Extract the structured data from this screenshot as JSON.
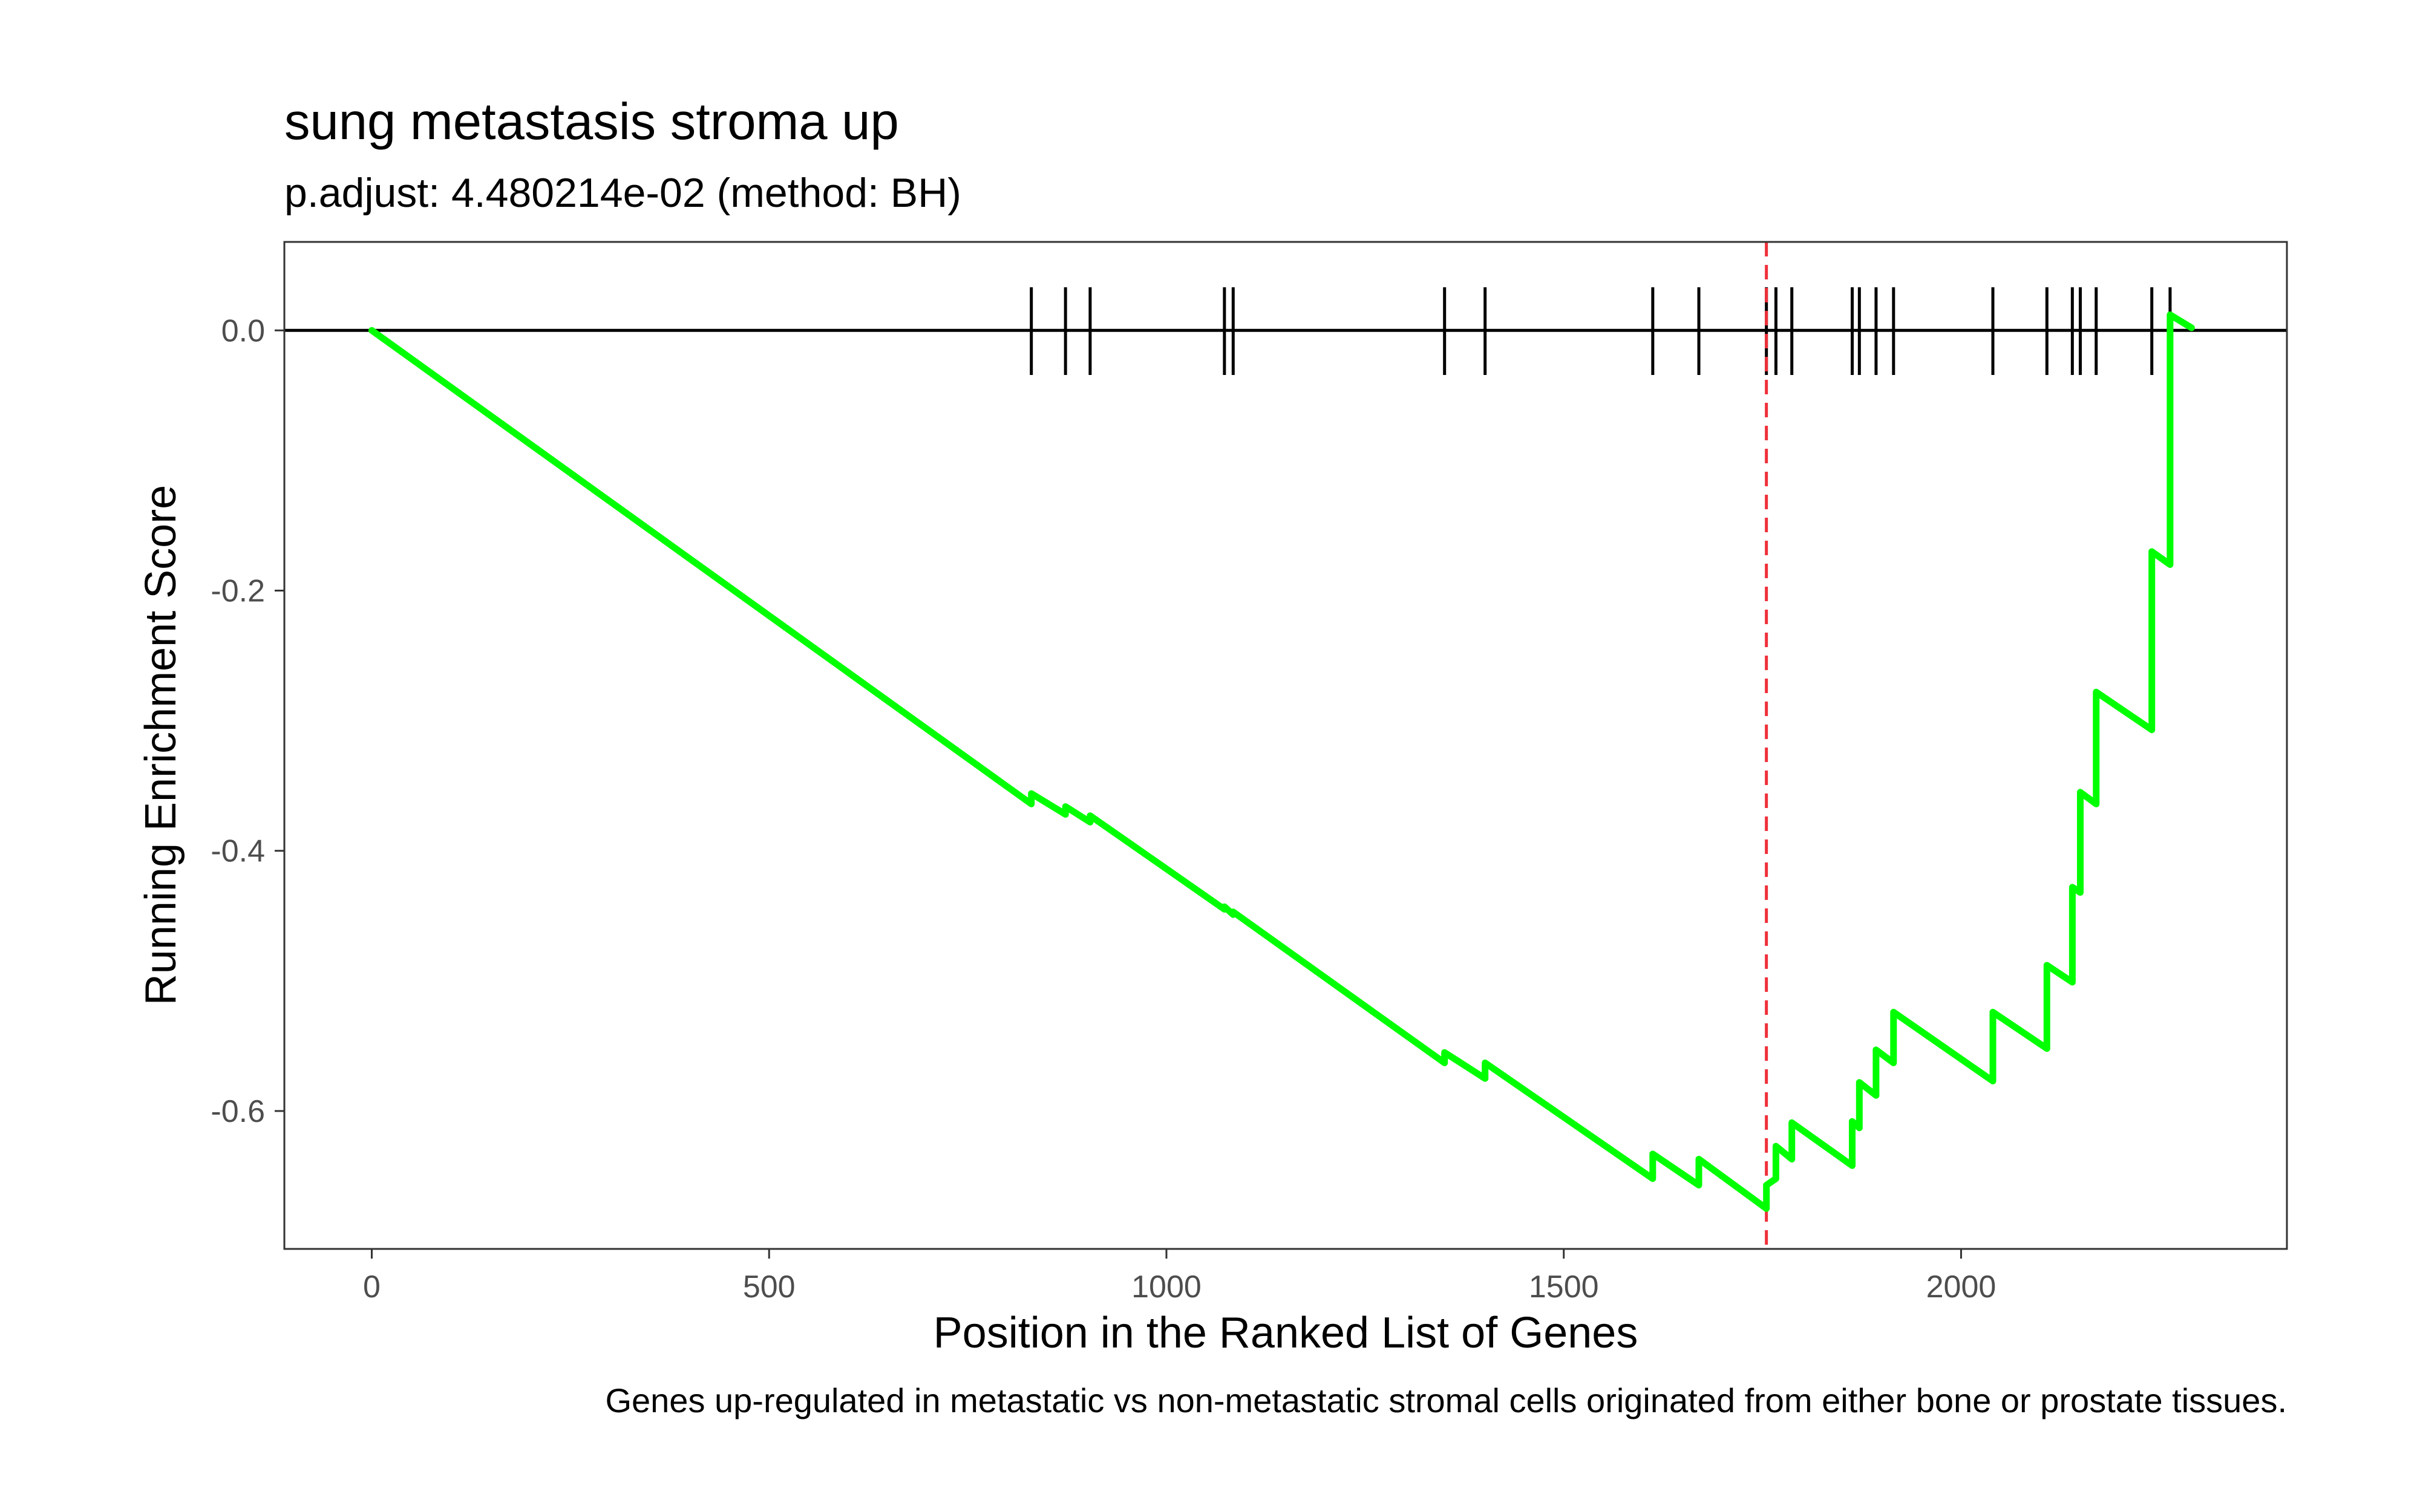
{
  "chart_data": {
    "type": "line",
    "title": "sung metastasis stroma up",
    "subtitle": "p.adjust: 4.480214e-02 (method: BH)",
    "xlabel": "Position in the Ranked List of Genes",
    "ylabel": "Running Enrichment Score",
    "caption": "Genes up-regulated in metastatic vs non-metastatic stromal cells originated from either bone or prostate tissues.",
    "xlim": [
      -110,
      2410
    ],
    "ylim": [
      -0.706,
      0.068
    ],
    "x_ticks": [
      0,
      500,
      1000,
      1500,
      2000
    ],
    "x_tick_labels": [
      "0",
      "500",
      "1000",
      "1500",
      "2000"
    ],
    "y_ticks": [
      0.0,
      -0.2,
      -0.4,
      -0.6
    ],
    "y_tick_labels": [
      "0.0",
      "-0.2",
      "-0.4",
      "-0.6"
    ],
    "grid": false,
    "line_color": "#00FF00",
    "hline_y": 0,
    "vline_x": 1755,
    "vline_color": "#F0303A",
    "gene_hits": [
      830,
      873,
      904,
      1073,
      1084,
      1350,
      1401,
      1612,
      1670,
      1755,
      1767,
      1787,
      1863,
      1872,
      1893,
      1915,
      2040,
      2108,
      2140,
      2150,
      2170,
      2240,
      2263
    ],
    "series": [
      {
        "x": [
          0,
          830,
          830,
          873,
          873,
          904,
          904,
          1073,
          1073,
          1084,
          1084,
          1350,
          1350,
          1401,
          1401,
          1612,
          1612,
          1670,
          1670,
          1755,
          1755,
          1767,
          1767,
          1787,
          1787,
          1863,
          1863,
          1872,
          1872,
          1893,
          1893,
          1915,
          1915,
          2040,
          2040,
          2108,
          2108,
          2140,
          2140,
          2150,
          2150,
          2170,
          2170,
          2240,
          2240,
          2263,
          2263,
          2290
        ],
        "y": [
          0.0,
          -0.364,
          -0.356,
          -0.372,
          -0.366,
          -0.378,
          -0.373,
          -0.445,
          -0.443,
          -0.449,
          -0.447,
          -0.563,
          -0.555,
          -0.575,
          -0.563,
          -0.652,
          -0.633,
          -0.657,
          -0.637,
          -0.675,
          -0.657,
          -0.652,
          -0.627,
          -0.637,
          -0.609,
          -0.642,
          -0.608,
          -0.613,
          -0.578,
          -0.588,
          -0.553,
          -0.563,
          -0.524,
          -0.577,
          -0.524,
          -0.552,
          -0.488,
          -0.501,
          -0.428,
          -0.432,
          -0.355,
          -0.364,
          -0.278,
          -0.307,
          -0.17,
          -0.18,
          0.012,
          0.002
        ]
      }
    ]
  }
}
